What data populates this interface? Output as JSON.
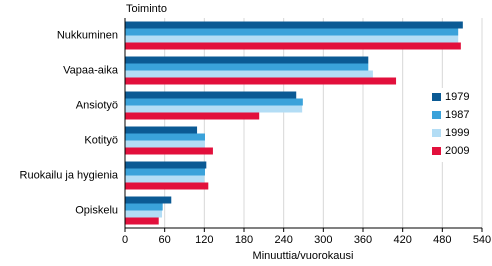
{
  "chart_data": {
    "type": "hbar",
    "y_axis_title": "Toiminto",
    "x_axis_title": "Minuuttia/vuorokausi",
    "categories": [
      "Nukkuminen",
      "Vapaa-aika",
      "Ansiotyö",
      "Kotityö",
      "Ruokailu ja hygienia",
      "Opiskelu"
    ],
    "series": [
      {
        "name": "1979",
        "color": "#0b5a94",
        "values": [
          511,
          368,
          259,
          109,
          123,
          70
        ]
      },
      {
        "name": "1987",
        "color": "#3aa2da",
        "values": [
          504,
          368,
          269,
          121,
          121,
          57
        ]
      },
      {
        "name": "1999",
        "color": "#b3ddf5",
        "values": [
          504,
          375,
          268,
          121,
          120,
          56
        ]
      },
      {
        "name": "2009",
        "color": "#e2103c",
        "values": [
          508,
          410,
          203,
          133,
          126,
          51
        ]
      }
    ],
    "xlim": [
      0,
      540
    ],
    "xticks": [
      0,
      60,
      120,
      180,
      240,
      300,
      360,
      420,
      480,
      540
    ],
    "grid": true,
    "legend": "right"
  }
}
